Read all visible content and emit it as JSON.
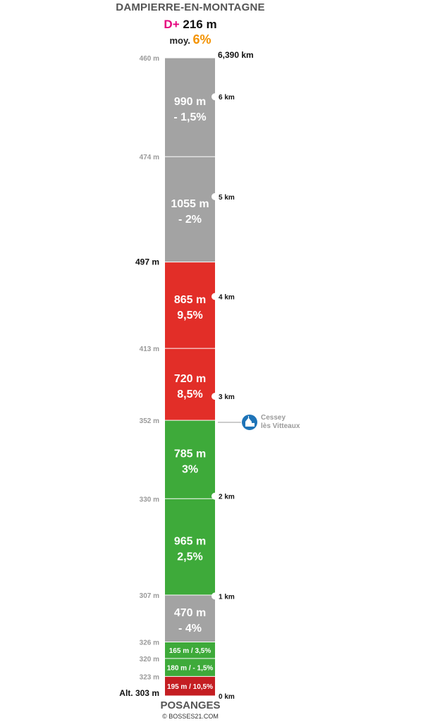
{
  "start_name": "DAMPIERRE-EN-MONTAGNE",
  "end_name": "POSANGES",
  "elevation_gain_label": "D+",
  "elevation_gain": "216 m",
  "average_label": "moy.",
  "average_value": "6%",
  "total_distance": "6,390 km",
  "credit": "© BOSSES21.COM",
  "colors": {
    "descent": "#a3a3a3",
    "moderate": "#3eaa3a",
    "steep": "#e22e28",
    "very_steep": "#c41e22",
    "gain_accent": "#e5007d",
    "average_accent": "#f39200",
    "poi": "#1e74b8"
  },
  "altitudes": [
    {
      "label": "Alt. 303 m",
      "km": 0.0,
      "emphasis": true
    },
    {
      "label": "323 m",
      "km": 0.195
    },
    {
      "label": "320 m",
      "km": 0.375
    },
    {
      "label": "326 m",
      "km": 0.54
    },
    {
      "label": "307 m",
      "km": 1.01
    },
    {
      "label": "330 m",
      "km": 1.975
    },
    {
      "label": "352 m",
      "km": 2.76
    },
    {
      "label": "413 m",
      "km": 3.48
    },
    {
      "label": "497 m",
      "km": 4.345,
      "emphasis": true
    },
    {
      "label": "474 m",
      "km": 5.4
    },
    {
      "label": "460 m",
      "km": 6.39
    }
  ],
  "segments": [
    {
      "length": "195 m",
      "grade": "10,5%",
      "inline": true,
      "kind": "very_steep",
      "from_km": 0.0,
      "to_km": 0.195
    },
    {
      "length": "180 m",
      "grade": "- 1,5%",
      "inline": true,
      "kind": "moderate",
      "from_km": 0.195,
      "to_km": 0.375
    },
    {
      "length": "165 m",
      "grade": "3,5%",
      "inline": true,
      "kind": "moderate",
      "from_km": 0.375,
      "to_km": 0.54
    },
    {
      "length": "470 m",
      "grade": "- 4%",
      "kind": "descent",
      "from_km": 0.54,
      "to_km": 1.01
    },
    {
      "length": "965 m",
      "grade": "2,5%",
      "kind": "moderate",
      "from_km": 1.01,
      "to_km": 1.975
    },
    {
      "length": "785 m",
      "grade": "3%",
      "kind": "moderate",
      "from_km": 1.975,
      "to_km": 2.76
    },
    {
      "length": "720 m",
      "grade": "8,5%",
      "kind": "steep",
      "from_km": 2.76,
      "to_km": 3.48
    },
    {
      "length": "865 m",
      "grade": "9,5%",
      "kind": "steep",
      "from_km": 3.48,
      "to_km": 4.345
    },
    {
      "length": "1055 m",
      "grade": "- 2%",
      "kind": "descent",
      "from_km": 4.345,
      "to_km": 5.4
    },
    {
      "length": "990 m",
      "grade": "- 1,5%",
      "kind": "descent",
      "from_km": 5.4,
      "to_km": 6.39
    }
  ],
  "km_markers": [
    {
      "label": "0 km",
      "km": 0
    },
    {
      "label": "1 km",
      "km": 1
    },
    {
      "label": "2 km",
      "km": 2
    },
    {
      "label": "3 km",
      "km": 3
    },
    {
      "label": "4 km",
      "km": 4
    },
    {
      "label": "5 km",
      "km": 5
    },
    {
      "label": "6 km",
      "km": 6
    }
  ],
  "poi": {
    "line1": "Cessey",
    "line2": "lès Vitteaux",
    "km": 2.74,
    "icon": "church-icon"
  }
}
